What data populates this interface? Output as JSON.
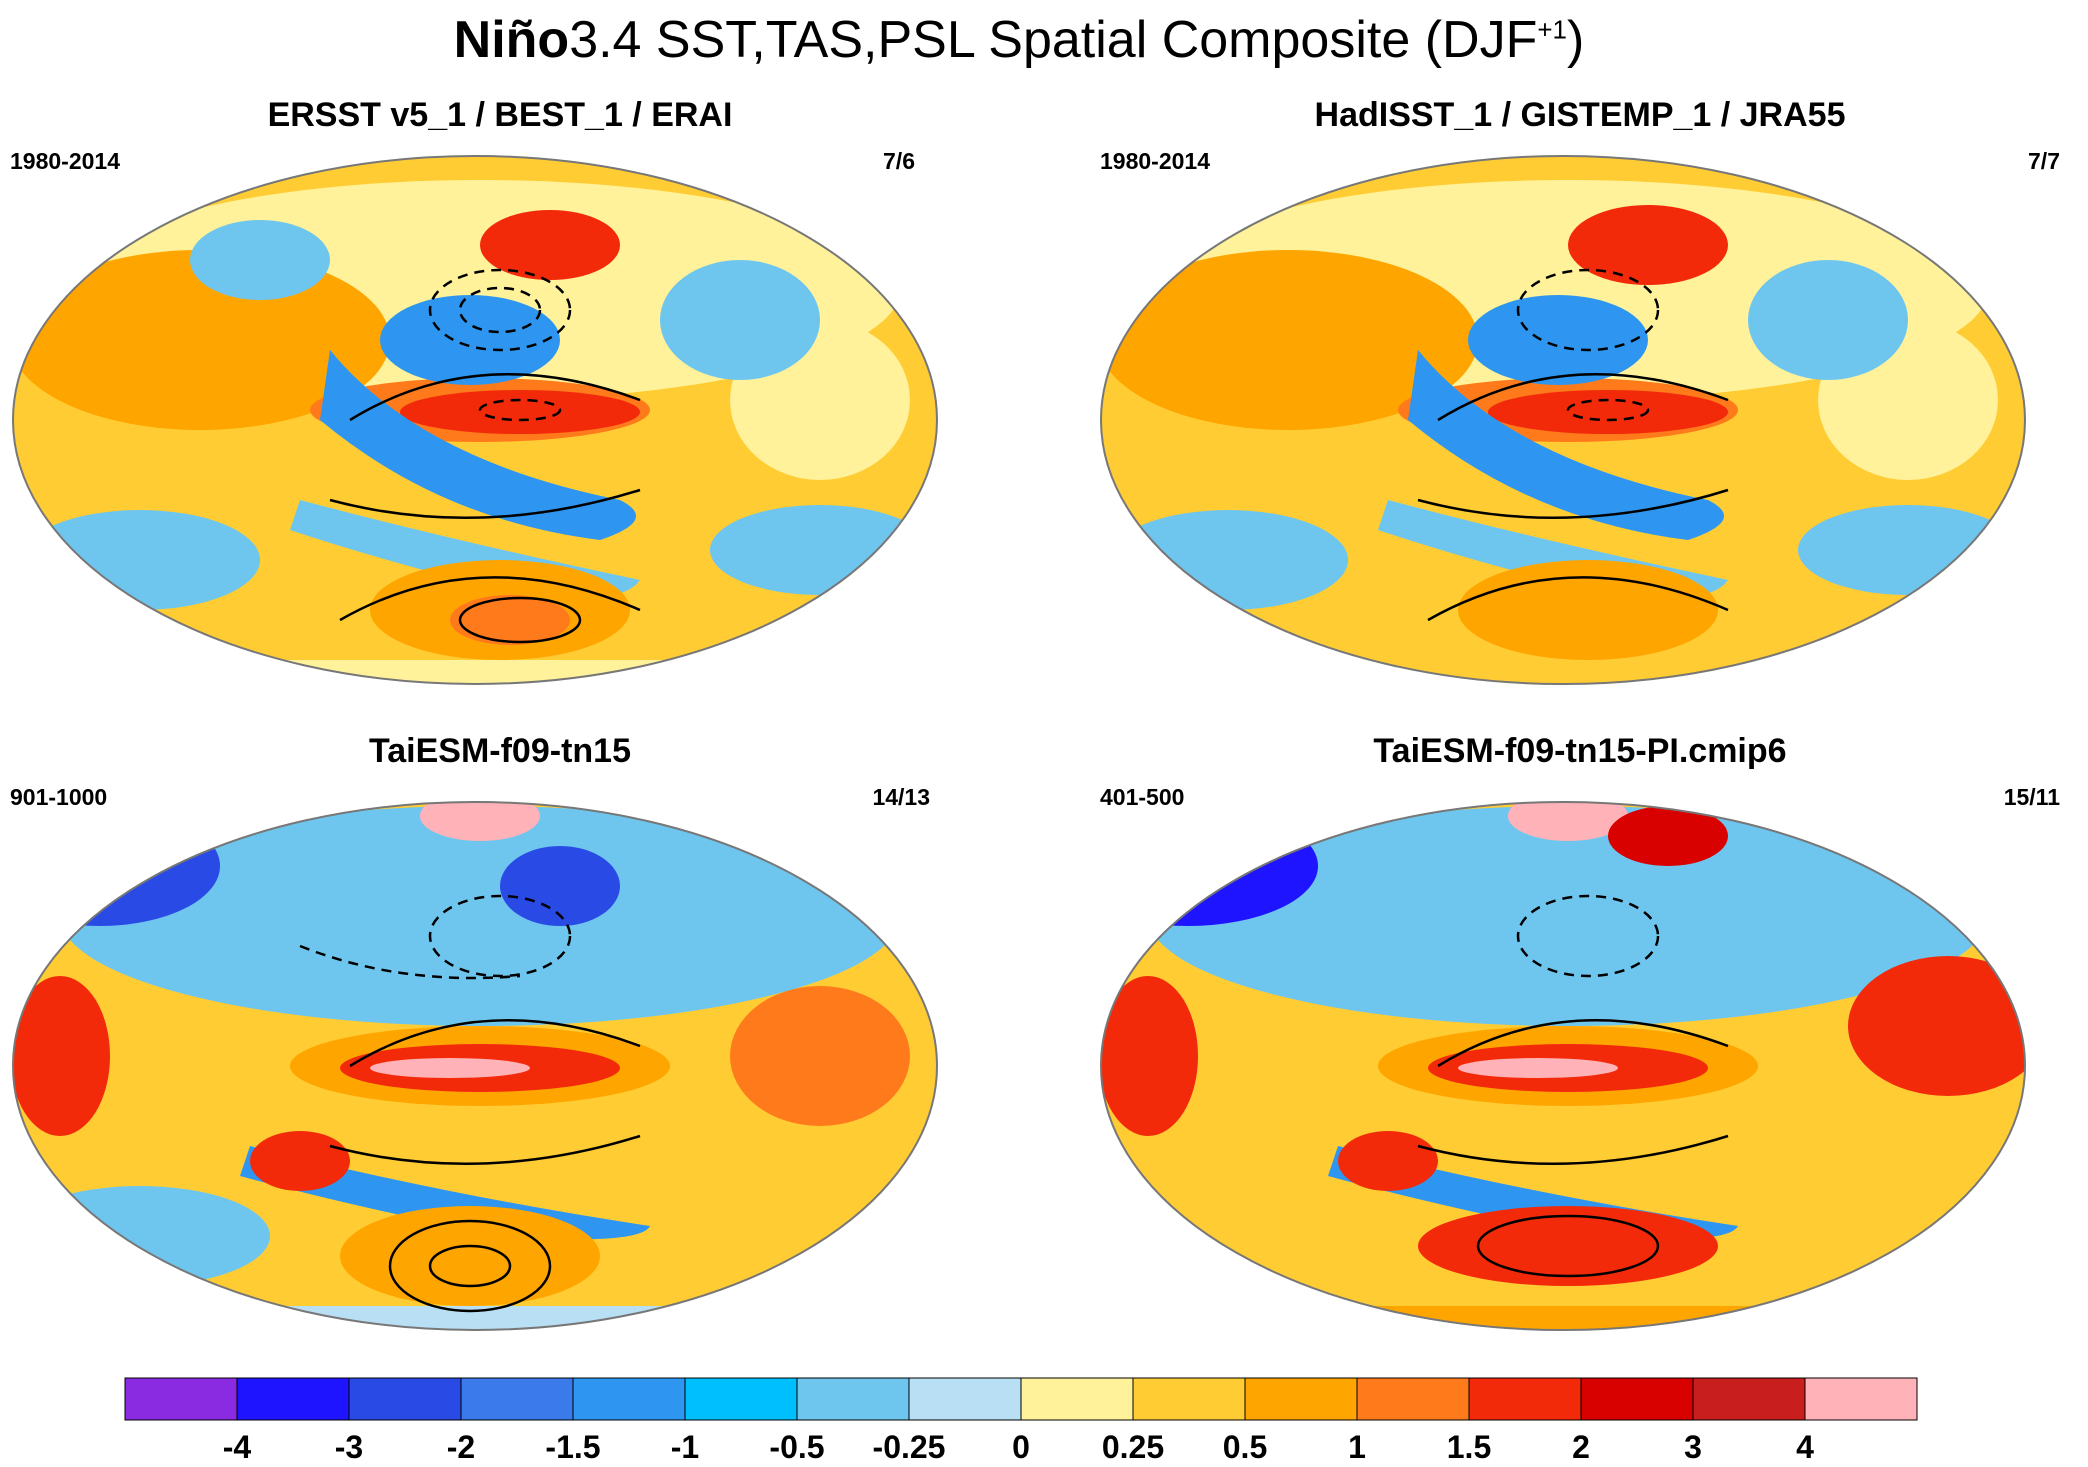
{
  "title": {
    "prefix": "Niño",
    "main": "3.4 SST,TAS,PSL Spatial Composite (DJF",
    "sup": "+1",
    "close": ")"
  },
  "panels": [
    {
      "title": "ERSST v5_1 / BEST_1 / ERAI",
      "period": "1980-2014",
      "count": "7/6"
    },
    {
      "title": "HadISST_1 / GISTEMP_1 / JRA55",
      "period": "1980-2014",
      "count": "7/7"
    },
    {
      "title": "TaiESM-f09-tn15",
      "period": "901-1000",
      "count": "14/13"
    },
    {
      "title": "TaiESM-f09-tn15-PI.cmip6",
      "period": "401-500",
      "count": "15/11"
    }
  ],
  "colorbar": {
    "labels": [
      "-4",
      "-3",
      "-2",
      "-1.5",
      "-1",
      "-0.5",
      "-0.25",
      "0",
      "0.25",
      "0.5",
      "1",
      "1.5",
      "2",
      "3",
      "4"
    ],
    "colors": [
      "#8a2be2",
      "#1f14ff",
      "#2a4ae6",
      "#3a7aea",
      "#2e96f0",
      "#00bfff",
      "#6ec6ef",
      "#b8dff3",
      "#fff29a",
      "#ffcc33",
      "#ffa500",
      "#ff7a1a",
      "#f22a0a",
      "#d90000",
      "#c81e1e",
      "#ffb3b8"
    ]
  },
  "palette": {
    "ocean_warm": "#ffa500",
    "land_outline": "#ffffff",
    "contour": "#000000"
  }
}
